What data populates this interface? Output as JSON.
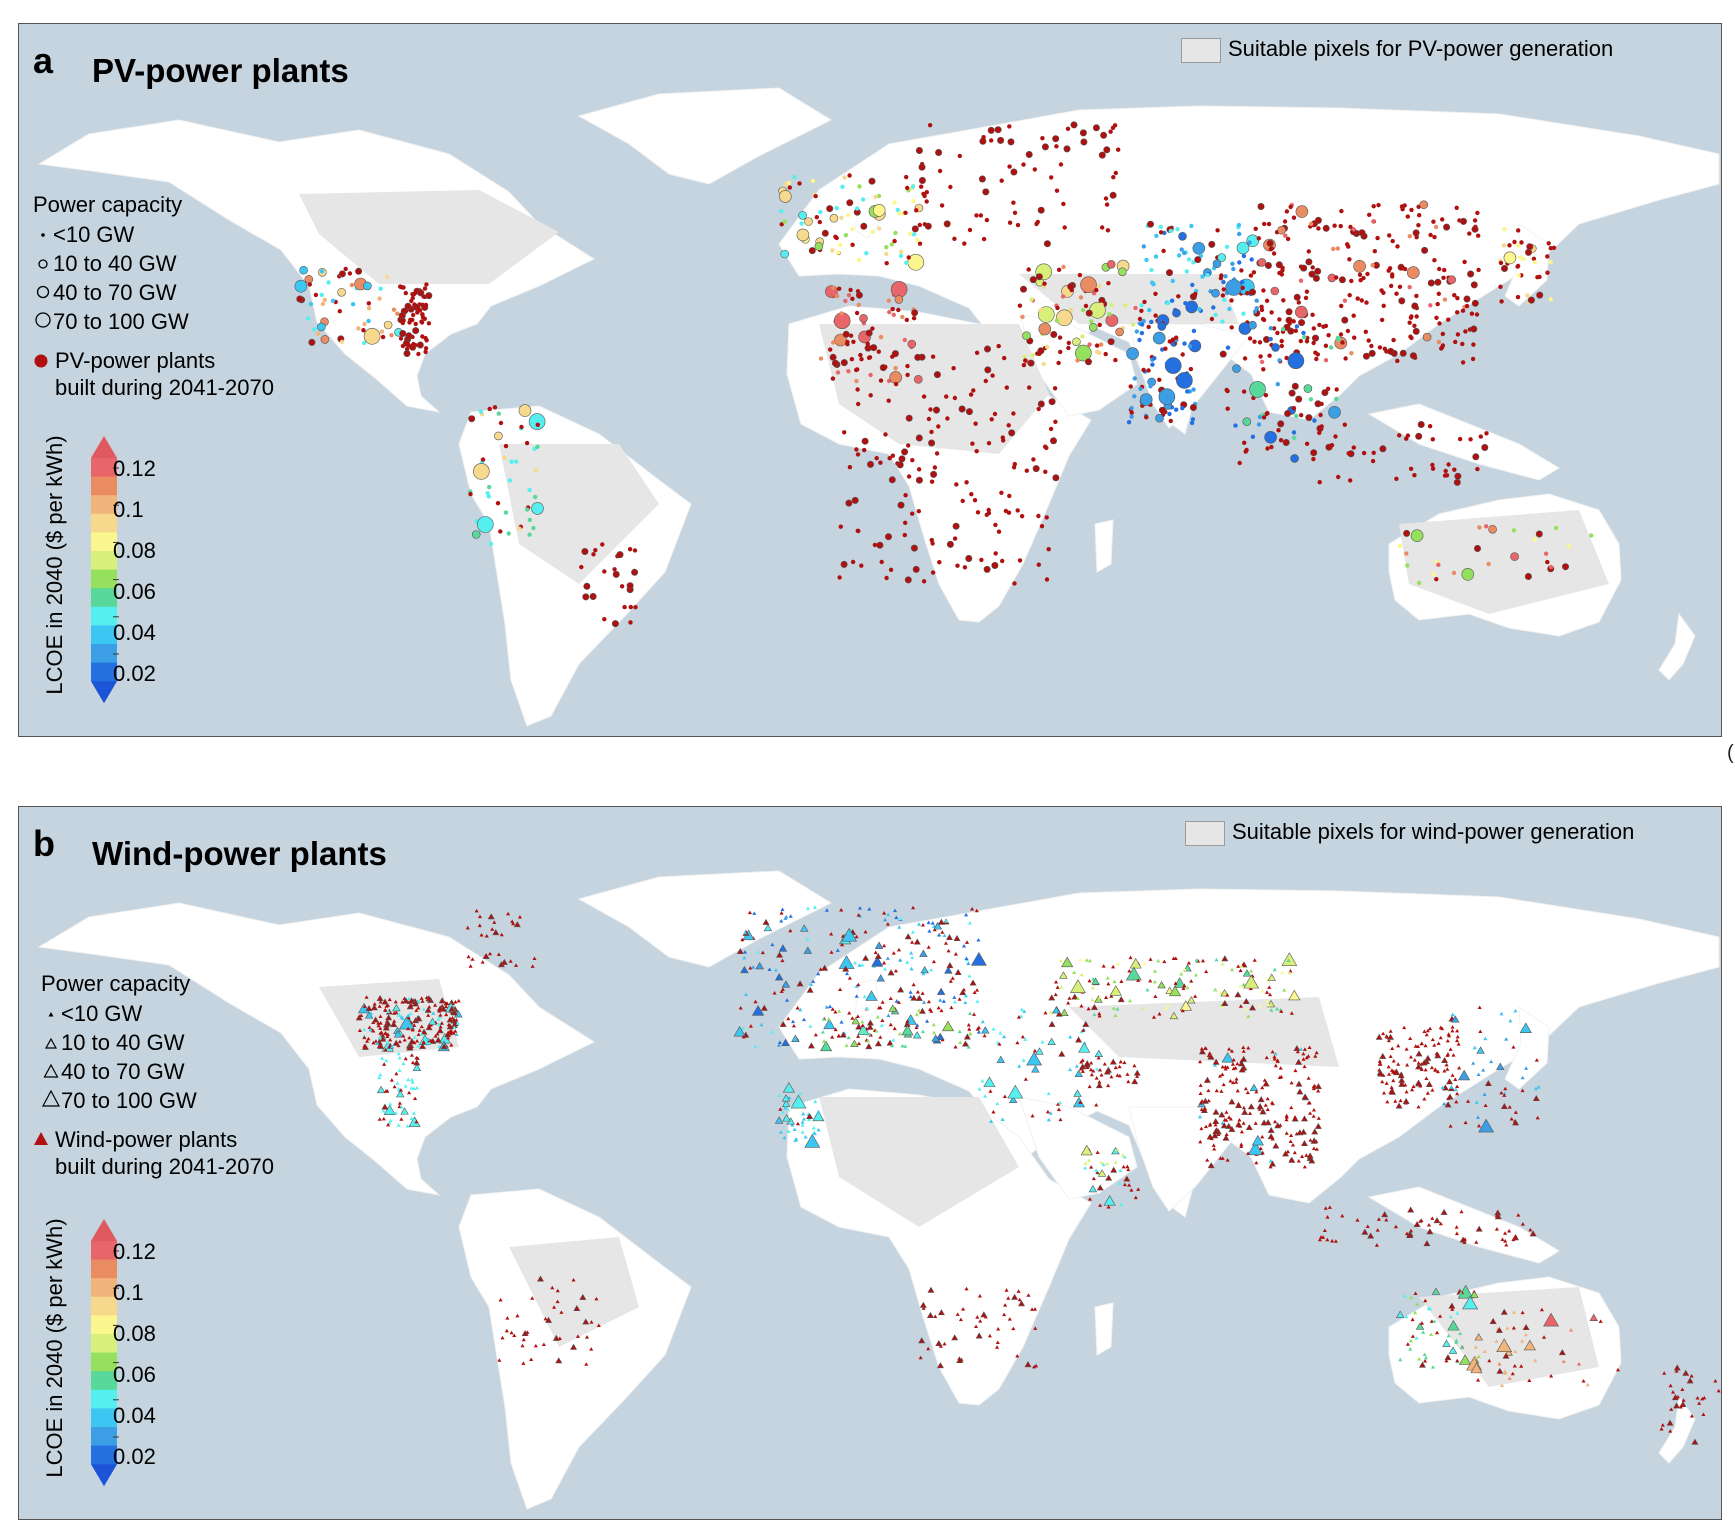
{
  "panels": [
    {
      "id": "a",
      "letter": "a",
      "title": "PV-power plants",
      "suitable_key": "Suitable pixels for PV-power generation",
      "symbol": "circle",
      "capacity_title": "Power capacity",
      "capacity_items": [
        "<10 GW",
        "10 to 40 GW",
        "40 to 70 GW",
        "70 to 100 GW"
      ],
      "built_line1": "PV-power plants",
      "built_line2": "built during 2041-2070",
      "colorbar_label": "LCOE in 2040 ($ per kWh)",
      "colorbar_ticks": [
        "0.12",
        "0.1",
        "0.08",
        "0.06",
        "0.04",
        "0.02"
      ]
    },
    {
      "id": "b",
      "letter": "b",
      "title": "Wind-power plants",
      "suitable_key": "Suitable pixels for wind-power generation",
      "symbol": "triangle",
      "capacity_title": "Power capacity",
      "capacity_items": [
        "<10 GW",
        "10 to 40 GW",
        "40 to 70 GW",
        "70 to 100 GW"
      ],
      "built_line1": "Wind-power plants",
      "built_line2": "built during 2041-2070",
      "colorbar_label": "LCOE in 2040 ($ per kWh)",
      "colorbar_ticks": [
        "0.12",
        "0.1",
        "0.08",
        "0.06",
        "0.04",
        "0.02"
      ]
    }
  ],
  "edge_mark": "(",
  "colors": {
    "ocean": "#c5d4de",
    "land": "#ffffff",
    "suitable": "#e6e6e6",
    "built_2041_2070": "#b01010",
    "colorbar": [
      "#e8666a",
      "#ea8c62",
      "#f1b47a",
      "#f6d98d",
      "#fbf78e",
      "#d8f07a",
      "#95e05c",
      "#58d89a",
      "#56eff0",
      "#3cc6f2",
      "#3c9fe6",
      "#2470e0"
    ],
    "colorbar_low_end": "#1c54d8",
    "colorbar_high_end": "#e05860"
  }
}
